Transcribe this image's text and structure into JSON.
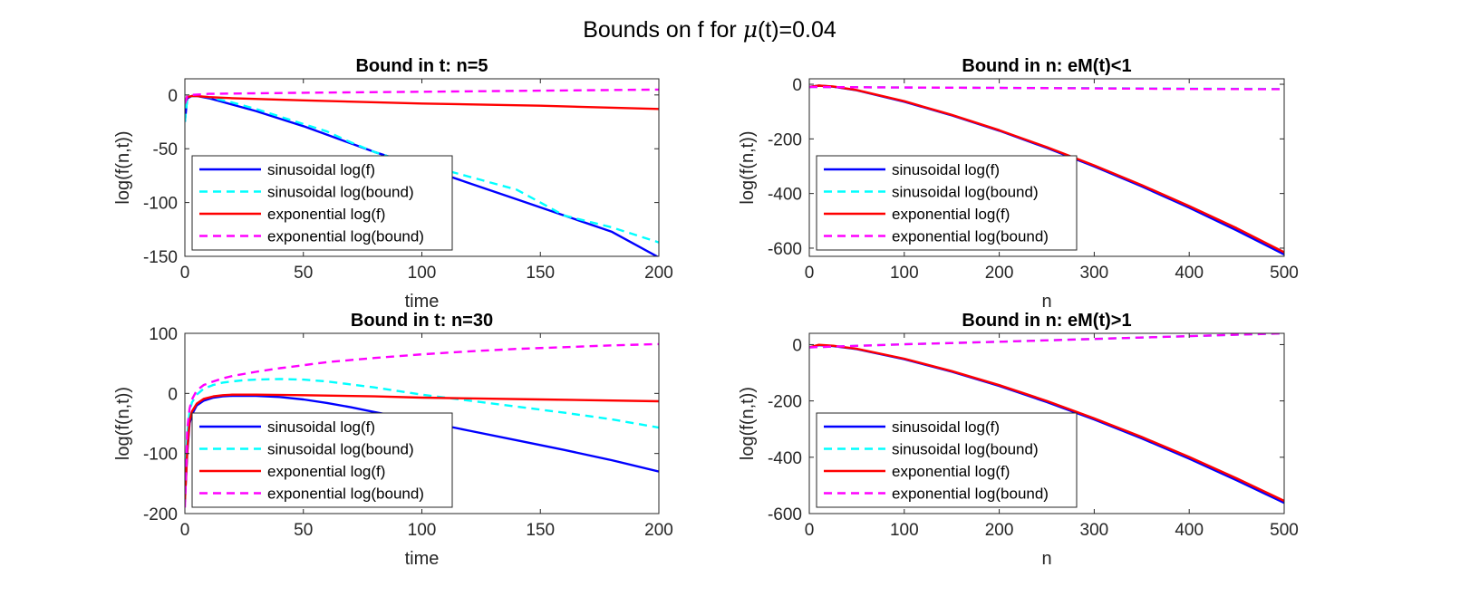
{
  "figure": {
    "title_prefix": "Bounds on f for ",
    "title_mu": "μ",
    "title_suffix": "(t)=0.04"
  },
  "colors": {
    "sin_f": "#0000ff",
    "sin_bound": "#00ffff",
    "exp_f": "#ff0000",
    "exp_bound": "#ff00ff",
    "axis": "#262626",
    "text": "#000000"
  },
  "legend_labels": [
    "sinusoidal log(f)",
    "sinusoidal log(bound)",
    "exponential log(f)",
    "exponential log(bound)"
  ],
  "chart_data": [
    {
      "type": "line",
      "title": "Bound in t: n=5",
      "xlabel": "time",
      "ylabel": "log(f(n,t))",
      "xlim": [
        0,
        200
      ],
      "ylim": [
        -150,
        15
      ],
      "xticks": [
        0,
        50,
        100,
        150,
        200
      ],
      "yticks": [
        -150,
        -100,
        -50,
        0
      ],
      "legend_loc": "bottom-left",
      "series": [
        {
          "name": "sinusoidal log(f)",
          "style": "solid",
          "x": [
            0,
            1,
            3,
            5,
            10,
            15,
            20,
            30,
            40,
            50,
            60,
            70,
            80,
            100,
            120,
            140,
            160,
            180,
            200
          ],
          "y": [
            -25,
            -3,
            -1,
            -1,
            -3,
            -6,
            -9,
            -15,
            -22,
            -29,
            -37,
            -45,
            -53,
            -67,
            -82,
            -97,
            -112,
            -127,
            -151
          ]
        },
        {
          "name": "sinusoidal log(bound)",
          "style": "dash",
          "x": [
            0,
            1,
            3,
            5,
            10,
            20,
            30,
            40,
            50,
            60,
            70,
            80,
            90,
            100,
            110,
            120,
            140,
            150,
            160,
            180,
            200
          ],
          "y": [
            -25,
            -3,
            -1,
            -1,
            -2,
            -7,
            -13,
            -20,
            -27,
            -34,
            -44,
            -53,
            -60,
            -65,
            -70,
            -76,
            -88,
            -100,
            -112,
            -123,
            -137
          ]
        },
        {
          "name": "exponential log(f)",
          "style": "solid",
          "x": [
            0,
            1,
            3,
            5,
            10,
            20,
            50,
            100,
            150,
            200
          ],
          "y": [
            -8,
            -2,
            -1,
            -1,
            -2,
            -3,
            -5,
            -8,
            -10,
            -13
          ]
        },
        {
          "name": "exponential log(bound)",
          "style": "dash",
          "x": [
            0,
            1,
            3,
            10,
            50,
            100,
            150,
            200
          ],
          "y": [
            -8,
            -1,
            0,
            1,
            2,
            3,
            4,
            5
          ]
        }
      ]
    },
    {
      "type": "line",
      "title": "Bound in n: eM(t)<1",
      "xlabel": "n",
      "ylabel": "log(f(n,t))",
      "xlim": [
        0,
        500
      ],
      "ylim": [
        -630,
        20
      ],
      "xticks": [
        0,
        100,
        200,
        300,
        400,
        500
      ],
      "yticks": [
        -600,
        -400,
        -200,
        0
      ],
      "legend_loc": "bottom-left",
      "series": [
        {
          "name": "sinusoidal log(f)",
          "style": "solid",
          "x": [
            0,
            10,
            25,
            50,
            100,
            150,
            200,
            250,
            300,
            350,
            400,
            450,
            500
          ],
          "y": [
            -10,
            -5,
            -9,
            -22,
            -64,
            -114,
            -170,
            -233,
            -301,
            -374,
            -452,
            -535,
            -623
          ]
        },
        {
          "name": "sinusoidal log(bound)",
          "style": "dash",
          "x": [
            0,
            100,
            200,
            300,
            400,
            500
          ],
          "y": [
            -10,
            -12,
            -13,
            -14,
            -16,
            -17
          ]
        },
        {
          "name": "exponential log(f)",
          "style": "solid",
          "x": [
            0,
            10,
            25,
            50,
            100,
            150,
            200,
            250,
            300,
            350,
            400,
            450,
            500
          ],
          "y": [
            -10,
            -5,
            -8,
            -21,
            -62,
            -112,
            -168,
            -230,
            -297,
            -369,
            -446,
            -527,
            -615
          ]
        },
        {
          "name": "exponential log(bound)",
          "style": "dash",
          "x": [
            0,
            100,
            200,
            300,
            400,
            500
          ],
          "y": [
            -10,
            -12,
            -13,
            -15,
            -17,
            -18
          ]
        }
      ]
    },
    {
      "type": "line",
      "title": "Bound in t: n=30",
      "xlabel": "time",
      "ylabel": "log(f(n,t))",
      "xlim": [
        0,
        200
      ],
      "ylim": [
        -200,
        100
      ],
      "xticks": [
        0,
        50,
        100,
        150,
        200
      ],
      "yticks": [
        -200,
        -100,
        0,
        100
      ],
      "legend_loc": "bottom-left",
      "series": [
        {
          "name": "sinusoidal log(f)",
          "style": "solid",
          "x": [
            0,
            1,
            2,
            3,
            5,
            8,
            12,
            16,
            20,
            25,
            30,
            40,
            50,
            60,
            70,
            80,
            100,
            120,
            140,
            160,
            180,
            200
          ],
          "y": [
            -180,
            -100,
            -50,
            -35,
            -20,
            -12,
            -7,
            -5,
            -4,
            -4,
            -4,
            -6,
            -10,
            -16,
            -23,
            -31,
            -46,
            -62,
            -78,
            -94,
            -111,
            -130
          ]
        },
        {
          "name": "sinusoidal log(bound)",
          "style": "dash",
          "x": [
            0,
            1,
            2,
            3,
            5,
            8,
            12,
            16,
            20,
            25,
            30,
            40,
            50,
            60,
            70,
            80,
            90,
            100,
            120,
            140,
            160,
            180,
            200
          ],
          "y": [
            -180,
            -70,
            -30,
            -15,
            -2,
            8,
            14,
            18,
            20,
            22,
            23,
            24,
            23,
            20,
            15,
            10,
            4,
            -2,
            -12,
            -22,
            -32,
            -43,
            -57
          ]
        },
        {
          "name": "exponential log(f)",
          "style": "solid",
          "x": [
            0,
            1,
            2,
            3,
            5,
            8,
            12,
            16,
            20,
            30,
            50,
            80,
            100,
            150,
            200
          ],
          "y": [
            -180,
            -95,
            -45,
            -30,
            -17,
            -9,
            -5,
            -3,
            -2,
            -2,
            -3,
            -5,
            -7,
            -10,
            -13
          ]
        },
        {
          "name": "exponential log(bound)",
          "style": "dash",
          "x": [
            0,
            1,
            2,
            3,
            5,
            8,
            12,
            16,
            20,
            30,
            40,
            50,
            60,
            80,
            100,
            120,
            140,
            160,
            180,
            200
          ],
          "y": [
            -190,
            -60,
            -25,
            -10,
            5,
            14,
            20,
            25,
            29,
            36,
            42,
            47,
            52,
            59,
            65,
            70,
            74,
            77,
            80,
            82
          ]
        }
      ]
    },
    {
      "type": "line",
      "title": "Bound in n: eM(t)>1",
      "xlabel": "n",
      "ylabel": "log(f(n,t))",
      "xlim": [
        0,
        500
      ],
      "ylim": [
        -600,
        40
      ],
      "xticks": [
        0,
        100,
        200,
        300,
        400,
        500
      ],
      "yticks": [
        -600,
        -400,
        -200,
        0
      ],
      "legend_loc": "bottom-left",
      "series": [
        {
          "name": "sinusoidal log(f)",
          "style": "solid",
          "x": [
            0,
            10,
            25,
            50,
            100,
            150,
            200,
            250,
            300,
            350,
            400,
            450,
            500
          ],
          "y": [
            -10,
            -2,
            -5,
            -16,
            -52,
            -96,
            -147,
            -204,
            -266,
            -333,
            -405,
            -482,
            -562
          ]
        },
        {
          "name": "sinusoidal log(bound)",
          "style": "dash",
          "x": [
            0,
            100,
            200,
            300,
            400,
            500
          ],
          "y": [
            -10,
            1,
            10,
            20,
            30,
            40
          ]
        },
        {
          "name": "exponential log(f)",
          "style": "solid",
          "x": [
            0,
            10,
            25,
            50,
            100,
            150,
            200,
            250,
            300,
            350,
            400,
            450,
            500
          ],
          "y": [
            -10,
            -1,
            -4,
            -15,
            -50,
            -94,
            -144,
            -200,
            -262,
            -328,
            -399,
            -475,
            -555
          ]
        },
        {
          "name": "exponential log(bound)",
          "style": "dash",
          "x": [
            0,
            100,
            200,
            300,
            400,
            500
          ],
          "y": [
            -10,
            1,
            10,
            20,
            30,
            40
          ]
        }
      ]
    }
  ]
}
